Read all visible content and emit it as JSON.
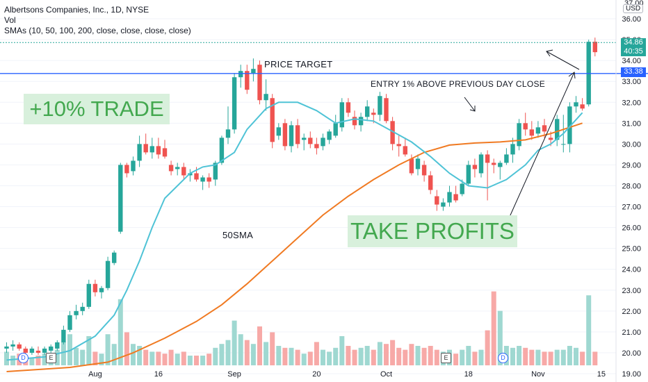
{
  "header": {
    "title": "Albertsons Companies, Inc., 1D, NYSE",
    "vol": "Vol",
    "smas": "SMAs (10, 50, 100, 200, close, close, close, close)"
  },
  "annotations": {
    "trade": "+10% TRADE",
    "take_profits": "TAKE PROFITS",
    "price_target": "PRICE TARGET",
    "entry": "ENTRY 1% ABOVE PREVIOUS DAY CLOSE",
    "sma50": "50SMA"
  },
  "price_axis": {
    "currency": "USD",
    "top_partial": "37.00",
    "last_price": "34.86",
    "countdown": "40:35",
    "target_price": "33.38"
  },
  "markers": [
    "D",
    "E",
    "E",
    "D"
  ],
  "colors": {
    "up": "#26a69a",
    "down": "#ef5350",
    "up_vol": "#9fd8d1",
    "down_vol": "#f7a9a7",
    "sma10": "#4fc3d6",
    "sma50": "#f07a22",
    "target_line": "#2962ff",
    "annotation_green": "#43a84f",
    "annotation_bg": "#d8f0dc"
  },
  "chart_data": {
    "type": "candlestick",
    "title": "Albertsons Companies, Inc., 1D, NYSE",
    "y_range": [
      18.6,
      36.9
    ],
    "y_ticks": [
      19,
      20,
      21,
      22,
      23,
      24,
      25,
      26,
      27,
      28,
      29,
      30,
      31,
      32,
      33,
      34,
      35,
      36
    ],
    "y_tick_labels": [
      "19.00",
      "20.00",
      "21.00",
      "22.00",
      "23.00",
      "24.00",
      "25.00",
      "26.00",
      "27.00",
      "28.00",
      "29.00",
      "30.00",
      "31.00",
      "32.00",
      "33.00",
      "34.00",
      "35.00",
      "36.00"
    ],
    "x_ticks": [
      {
        "label": "Aug",
        "bar": 14
      },
      {
        "label": "16",
        "bar": 24
      },
      {
        "label": "Sep",
        "bar": 36
      },
      {
        "label": "20",
        "bar": 49
      },
      {
        "label": "Oct",
        "bar": 60
      },
      {
        "label": "18",
        "bar": 73
      },
      {
        "label": "Nov",
        "bar": 84
      },
      {
        "label": "15",
        "bar": 94
      }
    ],
    "bar_spacing_days": 1,
    "candles": [
      {
        "o": 20.2,
        "h": 20.5,
        "l": 20.0,
        "c": 20.3,
        "v": 0.7
      },
      {
        "o": 20.3,
        "h": 20.6,
        "l": 20.1,
        "c": 20.4,
        "v": 0.5
      },
      {
        "o": 20.4,
        "h": 20.5,
        "l": 20.1,
        "c": 20.2,
        "v": 0.6
      },
      {
        "o": 20.2,
        "h": 20.3,
        "l": 19.9,
        "c": 20.0,
        "v": 0.5
      },
      {
        "o": 20.0,
        "h": 20.3,
        "l": 19.9,
        "c": 20.2,
        "v": 0.4
      },
      {
        "o": 20.1,
        "h": 20.3,
        "l": 19.9,
        "c": 20.0,
        "v": 0.5
      },
      {
        "o": 20.0,
        "h": 20.3,
        "l": 19.9,
        "c": 20.2,
        "v": 0.6
      },
      {
        "o": 20.1,
        "h": 20.4,
        "l": 20.0,
        "c": 20.3,
        "v": 0.6
      },
      {
        "o": 20.2,
        "h": 20.6,
        "l": 20.1,
        "c": 20.5,
        "v": 0.8
      },
      {
        "o": 20.5,
        "h": 21.3,
        "l": 20.4,
        "c": 21.1,
        "v": 1.2
      },
      {
        "o": 21.1,
        "h": 22.0,
        "l": 21.0,
        "c": 21.8,
        "v": 1.6
      },
      {
        "o": 21.8,
        "h": 22.3,
        "l": 21.6,
        "c": 22.0,
        "v": 0.9
      },
      {
        "o": 22.0,
        "h": 22.4,
        "l": 21.8,
        "c": 22.2,
        "v": 0.8
      },
      {
        "o": 22.2,
        "h": 23.5,
        "l": 22.1,
        "c": 23.3,
        "v": 1.5
      },
      {
        "o": 23.3,
        "h": 23.5,
        "l": 22.7,
        "c": 22.9,
        "v": 0.7
      },
      {
        "o": 22.9,
        "h": 23.2,
        "l": 22.6,
        "c": 23.1,
        "v": 0.6
      },
      {
        "o": 23.1,
        "h": 24.6,
        "l": 23.0,
        "c": 24.4,
        "v": 1.6
      },
      {
        "o": 24.3,
        "h": 24.9,
        "l": 24.2,
        "c": 24.8,
        "v": 1.1
      },
      {
        "o": 25.8,
        "h": 29.1,
        "l": 25.7,
        "c": 29.0,
        "v": 3.4
      },
      {
        "o": 29.0,
        "h": 29.1,
        "l": 28.4,
        "c": 28.6,
        "v": 1.7
      },
      {
        "o": 28.7,
        "h": 29.4,
        "l": 28.5,
        "c": 29.2,
        "v": 1.1
      },
      {
        "o": 29.2,
        "h": 30.4,
        "l": 28.9,
        "c": 30.0,
        "v": 1.0
      },
      {
        "o": 30.0,
        "h": 30.5,
        "l": 29.5,
        "c": 29.6,
        "v": 0.8
      },
      {
        "o": 29.6,
        "h": 30.3,
        "l": 29.3,
        "c": 29.9,
        "v": 0.7
      },
      {
        "o": 29.9,
        "h": 30.3,
        "l": 29.3,
        "c": 29.5,
        "v": 0.7
      },
      {
        "o": 29.8,
        "h": 30.2,
        "l": 29.3,
        "c": 29.4,
        "v": 0.6
      },
      {
        "o": 29.0,
        "h": 29.2,
        "l": 28.5,
        "c": 28.7,
        "v": 0.8
      },
      {
        "o": 28.8,
        "h": 29.1,
        "l": 28.5,
        "c": 28.9,
        "v": 0.6
      },
      {
        "o": 28.9,
        "h": 29.1,
        "l": 28.3,
        "c": 28.5,
        "v": 0.7
      },
      {
        "o": 28.5,
        "h": 28.8,
        "l": 28.2,
        "c": 28.6,
        "v": 0.5
      },
      {
        "o": 28.6,
        "h": 28.9,
        "l": 28.2,
        "c": 28.3,
        "v": 0.5
      },
      {
        "o": 28.2,
        "h": 28.5,
        "l": 27.8,
        "c": 28.4,
        "v": 0.5
      },
      {
        "o": 28.4,
        "h": 28.6,
        "l": 27.9,
        "c": 28.2,
        "v": 0.6
      },
      {
        "o": 28.3,
        "h": 29.2,
        "l": 28.0,
        "c": 29.1,
        "v": 0.9
      },
      {
        "o": 29.1,
        "h": 30.4,
        "l": 29.0,
        "c": 30.3,
        "v": 1.1
      },
      {
        "o": 30.3,
        "h": 31.8,
        "l": 30.0,
        "c": 30.7,
        "v": 1.3
      },
      {
        "o": 30.7,
        "h": 33.4,
        "l": 30.5,
        "c": 33.2,
        "v": 2.3
      },
      {
        "o": 33.2,
        "h": 33.8,
        "l": 32.7,
        "c": 33.5,
        "v": 1.6
      },
      {
        "o": 33.5,
        "h": 33.8,
        "l": 32.4,
        "c": 32.6,
        "v": 1.3
      },
      {
        "o": 33.4,
        "h": 34.1,
        "l": 33.0,
        "c": 33.6,
        "v": 1.1
      },
      {
        "o": 33.8,
        "h": 34.0,
        "l": 31.9,
        "c": 32.1,
        "v": 2.0
      },
      {
        "o": 32.1,
        "h": 33.1,
        "l": 31.6,
        "c": 32.4,
        "v": 1.2
      },
      {
        "o": 32.2,
        "h": 32.4,
        "l": 29.8,
        "c": 30.1,
        "v": 1.7
      },
      {
        "o": 30.4,
        "h": 31.0,
        "l": 30.2,
        "c": 30.8,
        "v": 1.0
      },
      {
        "o": 31.0,
        "h": 31.2,
        "l": 29.7,
        "c": 29.9,
        "v": 0.9
      },
      {
        "o": 29.9,
        "h": 31.1,
        "l": 29.6,
        "c": 30.9,
        "v": 0.9
      },
      {
        "o": 30.9,
        "h": 31.2,
        "l": 29.8,
        "c": 30.0,
        "v": 0.8
      },
      {
        "o": 30.2,
        "h": 30.5,
        "l": 29.7,
        "c": 30.3,
        "v": 0.6
      },
      {
        "o": 30.3,
        "h": 30.6,
        "l": 29.8,
        "c": 30.0,
        "v": 0.7
      },
      {
        "o": 30.0,
        "h": 30.3,
        "l": 29.5,
        "c": 29.8,
        "v": 1.2
      },
      {
        "o": 29.9,
        "h": 30.5,
        "l": 29.7,
        "c": 30.3,
        "v": 0.8
      },
      {
        "o": 30.2,
        "h": 30.7,
        "l": 30.0,
        "c": 30.6,
        "v": 0.7
      },
      {
        "o": 30.4,
        "h": 31.4,
        "l": 30.3,
        "c": 31.0,
        "v": 0.9
      },
      {
        "o": 30.8,
        "h": 32.2,
        "l": 30.6,
        "c": 32.0,
        "v": 1.5
      },
      {
        "o": 32.0,
        "h": 32.2,
        "l": 31.3,
        "c": 31.5,
        "v": 1.0
      },
      {
        "o": 31.3,
        "h": 31.6,
        "l": 30.7,
        "c": 30.9,
        "v": 0.8
      },
      {
        "o": 30.9,
        "h": 31.5,
        "l": 30.6,
        "c": 31.3,
        "v": 0.9
      },
      {
        "o": 31.3,
        "h": 32.1,
        "l": 31.1,
        "c": 31.8,
        "v": 1.0
      },
      {
        "o": 31.5,
        "h": 31.7,
        "l": 31.0,
        "c": 31.4,
        "v": 0.8
      },
      {
        "o": 31.4,
        "h": 32.5,
        "l": 31.1,
        "c": 32.3,
        "v": 1.2
      },
      {
        "o": 32.2,
        "h": 32.4,
        "l": 31.0,
        "c": 31.1,
        "v": 1.1
      },
      {
        "o": 31.1,
        "h": 31.3,
        "l": 29.7,
        "c": 30.0,
        "v": 1.3
      },
      {
        "o": 30.0,
        "h": 30.4,
        "l": 29.4,
        "c": 29.9,
        "v": 0.9
      },
      {
        "o": 29.9,
        "h": 30.3,
        "l": 29.4,
        "c": 29.5,
        "v": 0.8
      },
      {
        "o": 29.3,
        "h": 29.5,
        "l": 28.5,
        "c": 28.6,
        "v": 1.1
      },
      {
        "o": 28.8,
        "h": 29.5,
        "l": 28.5,
        "c": 29.3,
        "v": 1.0
      },
      {
        "o": 29.0,
        "h": 29.2,
        "l": 28.2,
        "c": 28.5,
        "v": 0.9
      },
      {
        "o": 28.5,
        "h": 28.7,
        "l": 27.6,
        "c": 27.8,
        "v": 1.0
      },
      {
        "o": 27.5,
        "h": 27.8,
        "l": 26.8,
        "c": 27.1,
        "v": 0.8
      },
      {
        "o": 27.0,
        "h": 27.4,
        "l": 26.8,
        "c": 27.2,
        "v": 0.7
      },
      {
        "o": 27.2,
        "h": 28.0,
        "l": 27.0,
        "c": 27.7,
        "v": 0.8
      },
      {
        "o": 27.6,
        "h": 28.0,
        "l": 27.2,
        "c": 27.3,
        "v": 0.6
      },
      {
        "o": 27.6,
        "h": 28.3,
        "l": 27.5,
        "c": 28.1,
        "v": 0.8
      },
      {
        "o": 28.1,
        "h": 29.2,
        "l": 28.0,
        "c": 29.0,
        "v": 1.0
      },
      {
        "o": 29.0,
        "h": 29.3,
        "l": 28.4,
        "c": 28.8,
        "v": 0.7
      },
      {
        "o": 28.6,
        "h": 29.6,
        "l": 28.4,
        "c": 29.5,
        "v": 0.8
      },
      {
        "o": 29.5,
        "h": 29.7,
        "l": 27.3,
        "c": 29.1,
        "v": 1.8
      },
      {
        "o": 29.1,
        "h": 29.3,
        "l": 28.6,
        "c": 29.0,
        "v": 3.8
      },
      {
        "o": 28.9,
        "h": 29.2,
        "l": 28.3,
        "c": 29.1,
        "v": 2.8
      },
      {
        "o": 29.1,
        "h": 29.8,
        "l": 29.0,
        "c": 29.5,
        "v": 1.0
      },
      {
        "o": 29.5,
        "h": 30.3,
        "l": 29.1,
        "c": 30.0,
        "v": 0.9
      },
      {
        "o": 29.9,
        "h": 31.2,
        "l": 29.7,
        "c": 31.0,
        "v": 1.0
      },
      {
        "o": 31.0,
        "h": 31.5,
        "l": 30.4,
        "c": 30.7,
        "v": 0.9
      },
      {
        "o": 30.7,
        "h": 31.1,
        "l": 30.2,
        "c": 30.4,
        "v": 0.8
      },
      {
        "o": 30.5,
        "h": 31.1,
        "l": 30.3,
        "c": 30.8,
        "v": 0.8
      },
      {
        "o": 30.9,
        "h": 31.2,
        "l": 30.3,
        "c": 30.6,
        "v": 0.7
      },
      {
        "o": 30.3,
        "h": 30.6,
        "l": 29.9,
        "c": 30.2,
        "v": 0.7
      },
      {
        "o": 30.2,
        "h": 31.4,
        "l": 29.9,
        "c": 31.2,
        "v": 0.8
      },
      {
        "o": 30.0,
        "h": 31.4,
        "l": 29.6,
        "c": 30.0,
        "v": 0.8
      },
      {
        "o": 30.0,
        "h": 32.0,
        "l": 29.6,
        "c": 31.8,
        "v": 1.0
      },
      {
        "o": 31.8,
        "h": 32.3,
        "l": 31.5,
        "c": 32.0,
        "v": 0.9
      },
      {
        "o": 31.9,
        "h": 32.2,
        "l": 31.6,
        "c": 31.7,
        "v": 0.7
      },
      {
        "o": 31.9,
        "h": 35.0,
        "l": 31.8,
        "c": 34.9,
        "v": 3.6
      },
      {
        "o": 34.9,
        "h": 35.1,
        "l": 34.2,
        "c": 34.4,
        "v": 0.7
      }
    ],
    "sma10": [
      [
        0,
        19.65
      ],
      [
        6,
        19.8
      ],
      [
        10,
        20.1
      ],
      [
        14,
        20.8
      ],
      [
        17,
        21.8
      ],
      [
        19,
        23.0
      ],
      [
        21,
        24.4
      ],
      [
        23,
        26.0
      ],
      [
        25,
        27.4
      ],
      [
        27,
        28.0
      ],
      [
        29,
        28.6
      ],
      [
        31,
        28.9
      ],
      [
        33,
        29.0
      ],
      [
        36,
        29.6
      ],
      [
        38,
        30.7
      ],
      [
        41,
        31.7
      ],
      [
        43,
        32.0
      ],
      [
        46,
        32.0
      ],
      [
        49,
        31.6
      ],
      [
        52,
        31.0
      ],
      [
        55,
        31.2
      ],
      [
        58,
        31.1
      ],
      [
        61,
        30.6
      ],
      [
        64,
        30.1
      ],
      [
        67,
        29.4
      ],
      [
        70,
        28.6
      ],
      [
        73,
        28.0
      ],
      [
        76,
        27.9
      ],
      [
        79,
        28.3
      ],
      [
        82,
        29.0
      ],
      [
        84,
        29.7
      ],
      [
        86,
        30.0
      ],
      [
        88,
        30.5
      ],
      [
        91,
        31.5
      ]
    ],
    "sma50": [
      [
        0,
        19.1
      ],
      [
        10,
        19.3
      ],
      [
        16,
        19.55
      ],
      [
        20,
        20.0
      ],
      [
        25,
        20.7
      ],
      [
        30,
        21.5
      ],
      [
        34,
        22.3
      ],
      [
        38,
        23.3
      ],
      [
        42,
        24.4
      ],
      [
        46,
        25.5
      ],
      [
        50,
        26.6
      ],
      [
        54,
        27.5
      ],
      [
        58,
        28.3
      ],
      [
        62,
        29.0
      ],
      [
        66,
        29.6
      ],
      [
        70,
        29.95
      ],
      [
        74,
        30.05
      ],
      [
        78,
        30.1
      ],
      [
        82,
        30.2
      ],
      [
        86,
        30.5
      ],
      [
        89,
        30.8
      ],
      [
        91,
        31.0
      ]
    ]
  }
}
